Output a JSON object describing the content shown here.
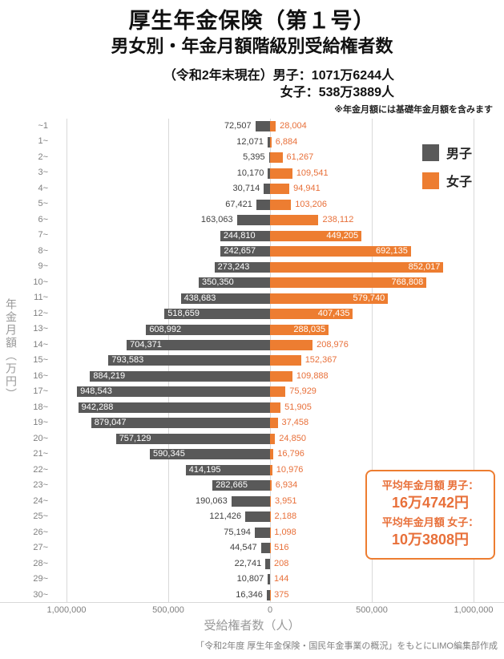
{
  "header": {
    "title": "厚生年金保険（第１号）",
    "subtitle": "男女別・年金月額階級別受給権者数",
    "stat_line1": "（令和2年末現在）男子：1071万6244人",
    "stat_line2": "女子：538万3889人",
    "note": "※年金月額には基礎年金月額を含みます"
  },
  "legend": {
    "male": "男子",
    "female": "女子"
  },
  "colors": {
    "male_bar": "#595959",
    "female_bar": "#ED7D31",
    "male_outside_label": "#404040",
    "female_outside_label": "#E8703A",
    "inside_label": "#ffffff",
    "grid": "#d9d9d9"
  },
  "chart_data": {
    "type": "bar",
    "orientation": "horizontal-diverging",
    "categories": [
      "~1",
      "1~",
      "2~",
      "3~",
      "4~",
      "5~",
      "6~",
      "7~",
      "8~",
      "9~",
      "10~",
      "11~",
      "12~",
      "13~",
      "14~",
      "15~",
      "16~",
      "17~",
      "18~",
      "19~",
      "20~",
      "21~",
      "22~",
      "23~",
      "24~",
      "25~",
      "26~",
      "27~",
      "28~",
      "29~",
      "30~"
    ],
    "series": [
      {
        "name": "男子",
        "side": "left",
        "values": [
          72507,
          12071,
          5395,
          10170,
          30714,
          67421,
          163063,
          244810,
          242657,
          273243,
          350350,
          438683,
          518659,
          608992,
          704371,
          793583,
          884219,
          948543,
          942288,
          879047,
          757129,
          590345,
          414195,
          282665,
          190063,
          121426,
          75194,
          44547,
          22741,
          10807,
          16346
        ]
      },
      {
        "name": "女子",
        "side": "right",
        "values": [
          28004,
          6884,
          61267,
          109541,
          94941,
          103206,
          238112,
          449205,
          692135,
          852017,
          768808,
          579740,
          407435,
          288035,
          208976,
          152367,
          109888,
          75929,
          51905,
          37458,
          24850,
          16796,
          10976,
          6934,
          3951,
          2188,
          1098,
          516,
          208,
          144,
          375
        ]
      }
    ],
    "x_axis": {
      "title": "受給権者数（人）",
      "ticks": [
        "1,000,000",
        "500,000",
        "0",
        "500,000",
        "1,000,000"
      ],
      "tick_values": [
        -1000000,
        -500000,
        0,
        500000,
        1000000
      ],
      "max": 1000000
    },
    "y_axis": {
      "title": "年金月額（万円）"
    },
    "grid": true,
    "legend_position": "top-right"
  },
  "average_box": {
    "label_male": "平均年金月額 男子：",
    "value_male": "16万4742円",
    "label_female": "平均年金月額 女子：",
    "value_female": "10万3808円"
  },
  "footer": {
    "source": "「令和2年度 厚生年金保険・国民年金事業の概況」をもとにLIMO編集部作成"
  }
}
